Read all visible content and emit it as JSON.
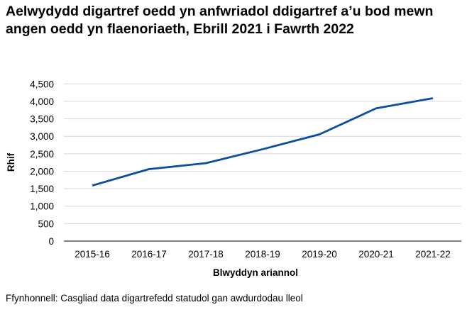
{
  "chart_data": {
    "type": "line",
    "title": "Aelwydydd digartref oedd yn anfwriadol ddigartref a’u bod mewn angen oedd yn flaenoriaeth, Ebrill 2021 i Fawrth 2022",
    "xlabel": "Blwyddyn ariannol",
    "ylabel": "Rhif",
    "categories": [
      "2015-16",
      "2016-17",
      "2017-18",
      "2018-19",
      "2019-20",
      "2020-21",
      "2021-22"
    ],
    "series": [
      {
        "values": [
          1590,
          2060,
          2230,
          2630,
          3055,
          3800,
          4090
        ],
        "color": "#0b4ea2"
      }
    ],
    "ylim": [
      0,
      4500
    ],
    "yticks": [
      0,
      500,
      1000,
      1500,
      2000,
      2500,
      3000,
      3500,
      4000,
      4500
    ],
    "ytick_labels": [
      "0",
      "500",
      "1,000",
      "1,500",
      "2,000",
      "2,500",
      "3,000",
      "3,500",
      "4,000",
      "4,500"
    ],
    "grid": true,
    "legend": "none"
  },
  "source": "Ffynhonnell: Casgliad data digartrefedd statudol gan awdurdodau lleol"
}
